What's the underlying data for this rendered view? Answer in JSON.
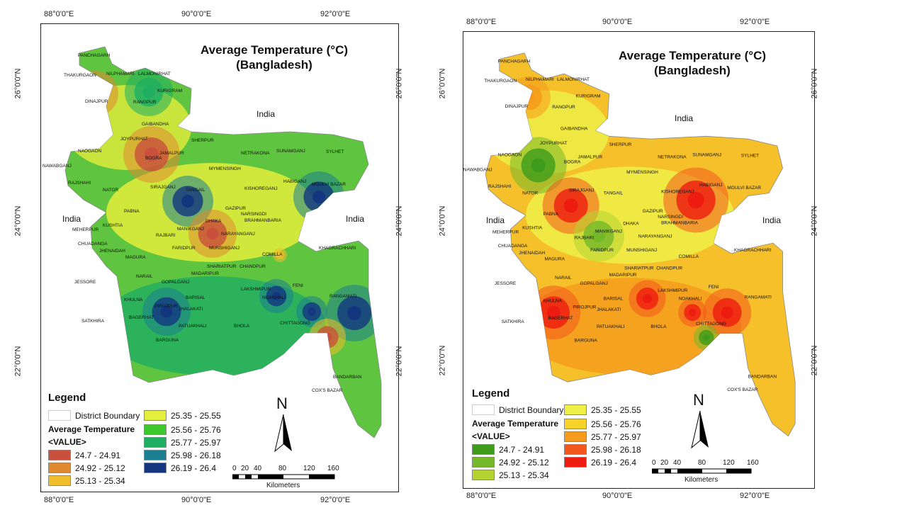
{
  "maps": [
    {
      "title_line1": "Average Temperature (°C)",
      "title_line2": "(Bangladesh)",
      "palette": "green-blue",
      "background_color": "#5fc43f",
      "ticks": {
        "top": [
          "88°0'0\"E",
          "90°0'0\"E",
          "92°0'0\"E"
        ],
        "bottom": [
          "88°0'0\"E",
          "90°0'0\"E",
          "92°0'0\"E"
        ],
        "left": [
          "26°0'0\"N",
          "24°0'0\"N",
          "22°0'0\"N"
        ],
        "right": [
          "26°0'0\"N",
          "24°0'0\"N",
          "22°0'0\"N"
        ]
      },
      "countries": [
        "India",
        "India",
        "India"
      ],
      "legend": {
        "title": "Legend",
        "boundary_label": "District Boundary",
        "field_label": "Average Temperature",
        "value_label": "<VALUE>",
        "classes": [
          {
            "label": "24.7 - 24.91",
            "color": "#c8503c"
          },
          {
            "label": "24.92 - 25.12",
            "color": "#e08a30"
          },
          {
            "label": "25.13 - 25.34",
            "color": "#f0be2a"
          },
          {
            "label": "25.35 - 25.55",
            "color": "#e4ee3c"
          },
          {
            "label": "25.56 - 25.76",
            "color": "#3ec82c"
          },
          {
            "label": "25.77 - 25.97",
            "color": "#1fae62"
          },
          {
            "label": "25.98 - 26.18",
            "color": "#1c7f90"
          },
          {
            "label": "26.19 - 26.4",
            "color": "#14367e"
          }
        ]
      },
      "north_label": "N",
      "scale": {
        "ticks": [
          "0",
          "20",
          "40",
          "80",
          "120",
          "160"
        ],
        "unit": "Kilometers"
      }
    },
    {
      "title_line1": "Average Temperature (°C)",
      "title_line2": "(Bangladesh)",
      "palette": "yellow-red",
      "background_color": "#f6c02a",
      "ticks": {
        "top": [
          "88°0'0\"E",
          "90°0'0\"E",
          "92°0'0\"E"
        ],
        "bottom": [
          "88°0'0\"E",
          "90°0'0\"E",
          "92°0'0\"E"
        ],
        "left": [
          "26°0'0\"N",
          "24°0'0\"N",
          "22°0'0\"N"
        ],
        "right": [
          "26°0'0\"N",
          "24°0'0\"N",
          "22°0'0\"N"
        ]
      },
      "countries": [
        "India",
        "India",
        "India"
      ],
      "legend": {
        "title": "Legend",
        "boundary_label": "District Boundary",
        "field_label": "Average Temperature",
        "value_label": "<VALUE>",
        "classes": [
          {
            "label": "24.7 - 24.91",
            "color": "#3f9b1c"
          },
          {
            "label": "24.92 - 25.12",
            "color": "#75b82a"
          },
          {
            "label": "25.13 - 25.34",
            "color": "#b3d431"
          },
          {
            "label": "25.35 - 25.55",
            "color": "#eef048"
          },
          {
            "label": "25.56 - 25.76",
            "color": "#f7d22a"
          },
          {
            "label": "25.77 - 25.97",
            "color": "#f59a1c"
          },
          {
            "label": "25.98 - 26.18",
            "color": "#f2581b"
          },
          {
            "label": "26.19 - 26.4",
            "color": "#ee1b10"
          }
        ]
      },
      "north_label": "N",
      "scale": {
        "ticks": [
          "0",
          "20",
          "40",
          "80",
          "120",
          "160"
        ],
        "unit": "Kilometers"
      }
    }
  ],
  "districts": [
    "PANCHAGARH",
    "THAKURGAON",
    "NILPHAMARI",
    "LALMONIRHAT",
    "KURIGRAM",
    "DINAJPUR",
    "RANGPUR",
    "GAIBANDHA",
    "JOYPURHAT",
    "BOGRA",
    "NAOGAON",
    "SHERPUR",
    "JAMALPUR",
    "NETRAKONA",
    "SUNAMGANJ",
    "SYLHET",
    "NAWABGANJ",
    "RAJSHAHI",
    "MYMENSINGH",
    "HABIGANJ",
    "MOULVI BAZAR",
    "NATOR",
    "SIRAJGANJ",
    "TANGAIL",
    "KISHOREGANJ",
    "GAZIPUR",
    "NARSINGDI",
    "PABNA",
    "BRAHMANBARIA",
    "DHAKA",
    "KUSHTIA",
    "MEHERPUR",
    "MANIKGANJ",
    "NARAYANGANJ",
    "CHUADANGA",
    "RAJBARI",
    "MUNSHIGANJ",
    "COMILLA",
    "JHENAIDAH",
    "FARIDPUR",
    "MAGURA",
    "KHAGRACHHARI",
    "SHARIATPUR",
    "CHANDPUR",
    "MADARIPUR",
    "JESSORE",
    "NARAIL",
    "GOPALGANJ",
    "FENI",
    "LAKSHMIPUR",
    "BARISAL",
    "NOAKHALI",
    "KHULNA",
    "PIROJPUR",
    "JHALAKATI",
    "RANGAMATI",
    "SATKHIRA",
    "BAGERHAT",
    "BHOLA",
    "CHITTAGONG",
    "PATUAKHALI",
    "BARGUNA",
    "BANDARBAN",
    "COX'S BAZAR"
  ]
}
